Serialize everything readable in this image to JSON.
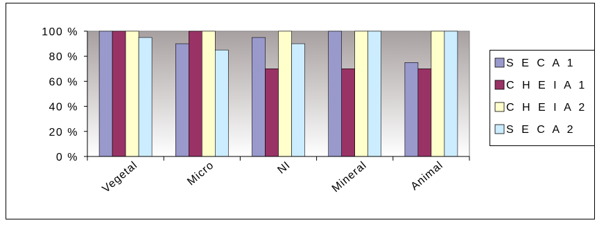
{
  "chart_data": {
    "type": "bar",
    "categories": [
      "Vegetal",
      "Micro",
      "NI",
      "Mineral",
      "Animal"
    ],
    "series": [
      {
        "name": "S E C A  1",
        "color": "#9999cc",
        "values": [
          100,
          90,
          95,
          100,
          75
        ]
      },
      {
        "name": "C H E I A  1",
        "color": "#993366",
        "values": [
          100,
          100,
          70,
          70,
          70
        ]
      },
      {
        "name": "C H E I A  2",
        "color": "#ffffcc",
        "values": [
          100,
          100,
          100,
          100,
          100
        ]
      },
      {
        "name": "S E C A  2",
        "color": "#ccecff",
        "values": [
          95,
          85,
          90,
          100,
          100
        ]
      }
    ],
    "yticks": [
      "0 %",
      "20 %",
      "40 %",
      "60 %",
      "80 %",
      "100 %"
    ],
    "ylim": [
      0,
      100
    ],
    "legend_position": "right",
    "grid": false,
    "plot_background": "gradient grey-to-white"
  }
}
